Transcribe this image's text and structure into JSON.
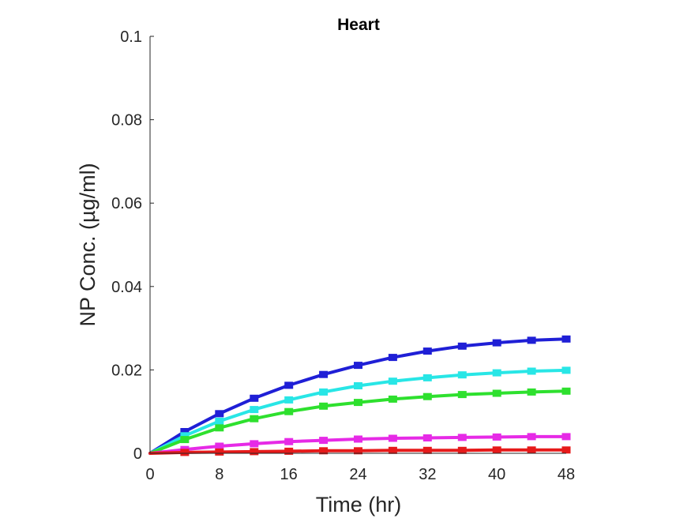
{
  "chart_data": {
    "type": "line",
    "title": "Heart",
    "xlabel": "Time (hr)",
    "ylabel": "NP Conc. (µg/ml)",
    "xlim": [
      0,
      48
    ],
    "ylim": [
      0,
      0.1
    ],
    "x_ticks": [
      0,
      8,
      16,
      24,
      32,
      40,
      48
    ],
    "x_tick_labels": [
      "0",
      "8",
      "16",
      "24",
      "32",
      "40",
      "48"
    ],
    "y_ticks": [
      0,
      0.02,
      0.04,
      0.06,
      0.08,
      0.1
    ],
    "y_tick_labels": [
      "0",
      "0.02",
      "0.04",
      "0.06",
      "0.08",
      "0.1"
    ],
    "grid": false,
    "legend": "none",
    "series": [
      {
        "color": "#1f1fd6",
        "x": [
          0,
          4,
          8,
          12,
          16,
          20,
          24,
          28,
          32,
          36,
          40,
          44,
          48
        ],
        "y": [
          0,
          0.0052,
          0.0095,
          0.0132,
          0.0163,
          0.0189,
          0.0211,
          0.023,
          0.0245,
          0.0257,
          0.0265,
          0.0271,
          0.0274
        ]
      },
      {
        "color": "#28e6e6",
        "x": [
          0,
          4,
          8,
          12,
          16,
          20,
          24,
          28,
          32,
          36,
          40,
          44,
          48
        ],
        "y": [
          0,
          0.0042,
          0.0077,
          0.0105,
          0.0128,
          0.0147,
          0.0162,
          0.0173,
          0.0181,
          0.0188,
          0.0193,
          0.0197,
          0.0199
        ]
      },
      {
        "color": "#2ee02e",
        "x": [
          0,
          4,
          8,
          12,
          16,
          20,
          24,
          28,
          32,
          36,
          40,
          44,
          48
        ],
        "y": [
          0,
          0.0033,
          0.0061,
          0.0083,
          0.01,
          0.0113,
          0.0122,
          0.013,
          0.0136,
          0.0141,
          0.0144,
          0.0147,
          0.0149
        ]
      },
      {
        "color": "#e62ae6",
        "x": [
          0,
          4,
          8,
          12,
          16,
          20,
          24,
          28,
          32,
          36,
          40,
          44,
          48
        ],
        "y": [
          0,
          0.0009,
          0.0017,
          0.0023,
          0.0028,
          0.0031,
          0.0034,
          0.0036,
          0.0037,
          0.0038,
          0.0039,
          0.004,
          0.004
        ]
      },
      {
        "color": "#e61a1a",
        "x": [
          0,
          4,
          8,
          12,
          16,
          20,
          24,
          28,
          32,
          36,
          40,
          44,
          48
        ],
        "y": [
          0,
          0.0002,
          0.0003,
          0.0004,
          0.0005,
          0.0006,
          0.0006,
          0.0007,
          0.0007,
          0.0007,
          0.0008,
          0.0008,
          0.0008
        ]
      }
    ]
  }
}
